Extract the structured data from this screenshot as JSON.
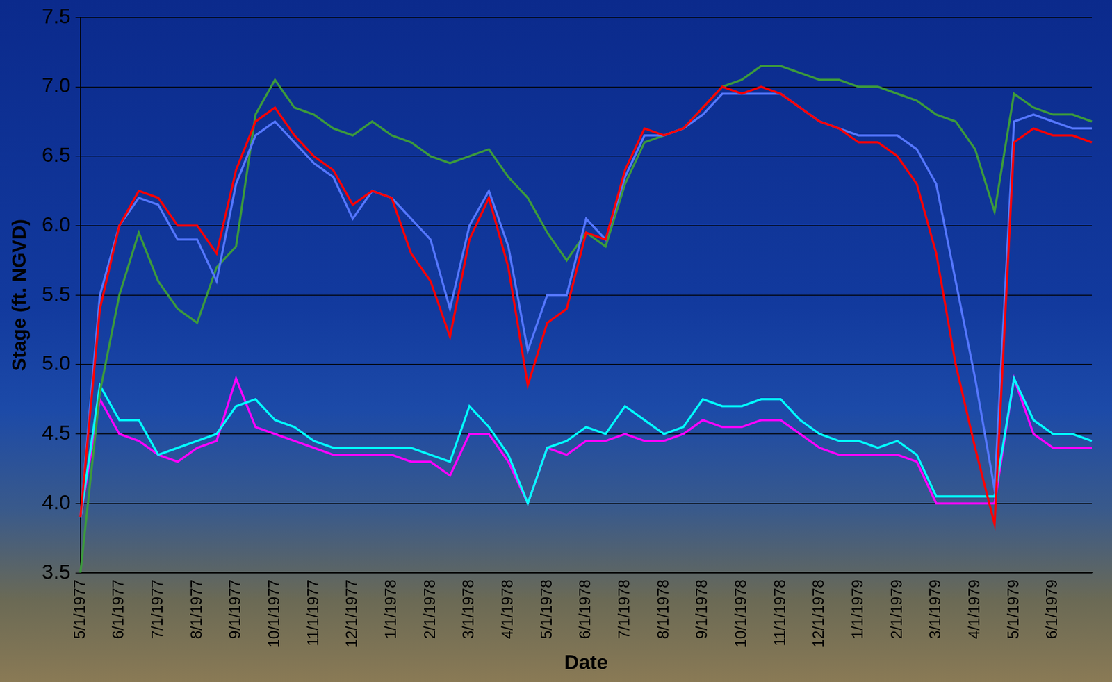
{
  "chart_data": {
    "type": "line",
    "xlabel": "Date",
    "ylabel": "Stage (ft. NGVD)",
    "categories": [
      "5/1/1977",
      null,
      "6/1/1977",
      null,
      "7/1/1977",
      null,
      "8/1/1977",
      null,
      "9/1/1977",
      null,
      "10/1/1977",
      null,
      "11/1/1977",
      null,
      "12/1/1977",
      null,
      "1/1/1978",
      null,
      "2/1/1978",
      null,
      "3/1/1978",
      null,
      "4/1/1978",
      null,
      "5/1/1978",
      null,
      "6/1/1978",
      null,
      "7/1/1978",
      null,
      "8/1/1978",
      null,
      "9/1/1978",
      null,
      "10/1/1978",
      null,
      "11/1/1978",
      null,
      "12/1/1978",
      null,
      "1/1/1979",
      null,
      "2/1/1979",
      null,
      "3/1/1979",
      null,
      "4/1/1979",
      null,
      "5/1/1979",
      null,
      "6/1/1979",
      null,
      null
    ],
    "series": [
      {
        "color": "#ff0000",
        "values": [
          3.9,
          5.4,
          6.0,
          6.25,
          6.2,
          6.0,
          6.0,
          5.8,
          6.4,
          6.75,
          6.85,
          6.65,
          6.5,
          6.4,
          6.15,
          6.25,
          6.2,
          5.8,
          5.6,
          5.2,
          5.9,
          6.2,
          5.7,
          4.85,
          5.3,
          5.4,
          5.95,
          5.9,
          6.4,
          6.7,
          6.65,
          6.7,
          6.85,
          7.0,
          6.95,
          7.0,
          6.95,
          6.85,
          6.75,
          6.7,
          6.6,
          6.6,
          6.5,
          6.3,
          5.8,
          5.0,
          4.4,
          3.85,
          6.6,
          6.7,
          6.65,
          6.65,
          6.6
        ]
      },
      {
        "color": "#5577ff",
        "values": [
          3.9,
          5.5,
          6.0,
          6.2,
          6.15,
          5.9,
          5.9,
          5.6,
          6.3,
          6.65,
          6.75,
          6.6,
          6.45,
          6.35,
          6.05,
          6.25,
          6.2,
          6.05,
          5.9,
          5.4,
          6.0,
          6.25,
          5.85,
          5.1,
          5.5,
          5.5,
          6.05,
          5.9,
          6.35,
          6.65,
          6.65,
          6.7,
          6.8,
          6.95,
          6.95,
          6.95,
          6.95,
          6.85,
          6.75,
          6.7,
          6.65,
          6.65,
          6.65,
          6.55,
          6.3,
          5.6,
          4.9,
          4.1,
          6.75,
          6.8,
          6.75,
          6.7,
          6.7
        ]
      },
      {
        "color": "#3c9a3c",
        "values": [
          3.5,
          4.8,
          5.5,
          5.95,
          5.6,
          5.4,
          5.3,
          5.7,
          5.85,
          6.8,
          7.05,
          6.85,
          6.8,
          6.7,
          6.65,
          6.75,
          6.65,
          6.6,
          6.5,
          6.45,
          6.5,
          6.55,
          6.35,
          6.2,
          5.95,
          5.75,
          5.95,
          5.85,
          6.3,
          6.6,
          6.65,
          6.7,
          6.85,
          7.0,
          7.05,
          7.15,
          7.15,
          7.1,
          7.05,
          7.05,
          7.0,
          7.0,
          6.95,
          6.9,
          6.8,
          6.75,
          6.55,
          6.1,
          6.95,
          6.85,
          6.8,
          6.8,
          6.75
        ]
      },
      {
        "color": "#00ffff",
        "values": [
          3.9,
          4.85,
          4.6,
          4.6,
          4.35,
          4.4,
          4.45,
          4.5,
          4.7,
          4.75,
          4.6,
          4.55,
          4.45,
          4.4,
          4.4,
          4.4,
          4.4,
          4.4,
          4.35,
          4.3,
          4.7,
          4.55,
          4.35,
          4.0,
          4.4,
          4.45,
          4.55,
          4.5,
          4.7,
          4.6,
          4.5,
          4.55,
          4.75,
          4.7,
          4.7,
          4.75,
          4.75,
          4.6,
          4.5,
          4.45,
          4.45,
          4.4,
          4.45,
          4.35,
          4.05,
          4.05,
          4.05,
          4.05,
          4.9,
          4.6,
          4.5,
          4.5,
          4.45
        ]
      },
      {
        "color": "#ff00ff",
        "values": [
          3.9,
          4.75,
          4.5,
          4.45,
          4.35,
          4.3,
          4.4,
          4.45,
          4.9,
          4.55,
          4.5,
          4.45,
          4.4,
          4.35,
          4.35,
          4.35,
          4.35,
          4.3,
          4.3,
          4.2,
          4.5,
          4.5,
          4.3,
          4.0,
          4.4,
          4.35,
          4.45,
          4.45,
          4.5,
          4.45,
          4.45,
          4.5,
          4.6,
          4.55,
          4.55,
          4.6,
          4.6,
          4.5,
          4.4,
          4.35,
          4.35,
          4.35,
          4.35,
          4.3,
          4.0,
          4.0,
          4.0,
          4.0,
          4.9,
          4.5,
          4.4,
          4.4,
          4.4
        ]
      }
    ],
    "ylim": [
      3.5,
      7.5
    ],
    "yticks": [
      3.5,
      {
        "value": 4,
        "label": "4.0"
      },
      4.5,
      {
        "value": 5,
        "label": "5.0"
      },
      5.5,
      {
        "value": 6,
        "label": "6.0"
      },
      6.5,
      {
        "value": 7,
        "label": "7.0"
      },
      7.5
    ],
    "grid": true
  }
}
